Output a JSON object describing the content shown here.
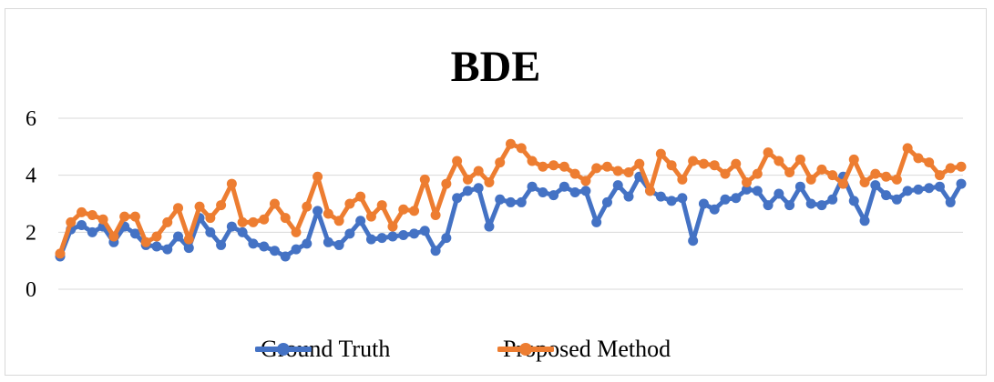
{
  "chart_data": {
    "type": "line",
    "title": "BDE",
    "xlabel": "",
    "ylabel": "",
    "ylim": [
      0,
      6
    ],
    "yticks": [
      0,
      2,
      4,
      6
    ],
    "grid": true,
    "legend_position": "bottom",
    "series": [
      {
        "name": "Ground Truth",
        "color": "#4472C4",
        "values": [
          1.15,
          2.1,
          2.25,
          2.0,
          2.2,
          1.65,
          2.2,
          1.95,
          1.55,
          1.5,
          1.4,
          1.85,
          1.45,
          2.5,
          2.0,
          1.55,
          2.2,
          2.0,
          1.6,
          1.5,
          1.35,
          1.15,
          1.4,
          1.6,
          2.75,
          1.65,
          1.55,
          1.95,
          2.4,
          1.75,
          1.8,
          1.85,
          1.9,
          1.95,
          2.05,
          1.35,
          1.8,
          3.2,
          3.45,
          3.55,
          2.2,
          3.15,
          3.05,
          3.05,
          3.6,
          3.4,
          3.3,
          3.6,
          3.4,
          3.45,
          2.35,
          3.05,
          3.65,
          3.25,
          3.95,
          3.45,
          3.25,
          3.1,
          3.2,
          1.7,
          3.0,
          2.8,
          3.15,
          3.2,
          3.5,
          3.45,
          2.95,
          3.35,
          2.95,
          3.6,
          3.0,
          2.95,
          3.15,
          3.95,
          3.1,
          2.4,
          3.65,
          3.3,
          3.15,
          3.45,
          3.5,
          3.55,
          3.6,
          3.05,
          3.7
        ]
      },
      {
        "name": "Proposed Method",
        "color": "#ED7D31",
        "values": [
          1.25,
          2.35,
          2.7,
          2.6,
          2.45,
          1.85,
          2.55,
          2.55,
          1.65,
          1.85,
          2.35,
          2.85,
          1.75,
          2.9,
          2.5,
          2.95,
          3.7,
          2.35,
          2.35,
          2.45,
          3.0,
          2.5,
          2.0,
          2.9,
          3.95,
          2.65,
          2.4,
          3.0,
          3.25,
          2.55,
          2.95,
          2.2,
          2.8,
          2.75,
          3.85,
          2.6,
          3.7,
          4.5,
          3.85,
          4.15,
          3.75,
          4.45,
          5.1,
          4.95,
          4.5,
          4.3,
          4.35,
          4.3,
          4.05,
          3.8,
          4.25,
          4.3,
          4.15,
          4.1,
          4.4,
          3.45,
          4.75,
          4.35,
          3.85,
          4.5,
          4.4,
          4.35,
          4.05,
          4.4,
          3.75,
          4.05,
          4.8,
          4.5,
          4.1,
          4.55,
          3.85,
          4.2,
          4.0,
          3.7,
          4.55,
          3.75,
          4.05,
          3.95,
          3.85,
          4.95,
          4.6,
          4.45,
          4.0,
          4.25,
          4.3
        ]
      }
    ]
  }
}
